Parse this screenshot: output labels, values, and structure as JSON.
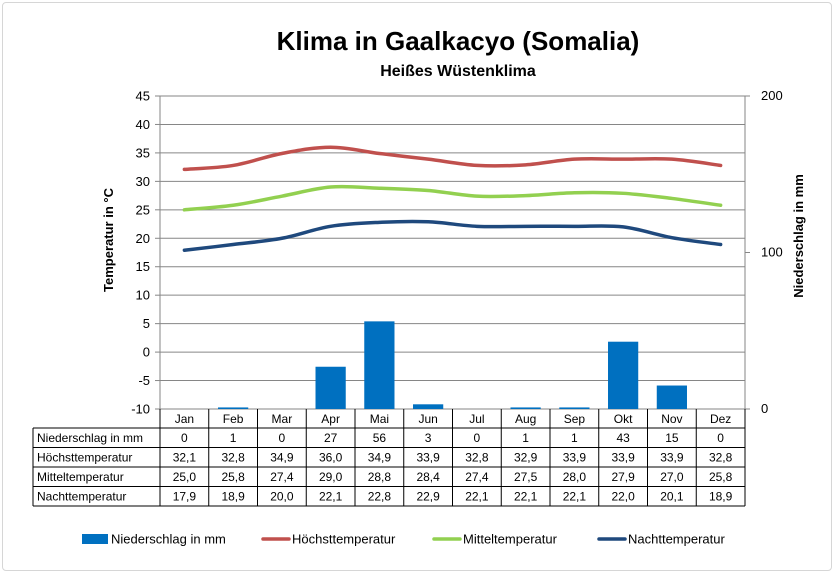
{
  "chart_data": {
    "type": "bar",
    "title": "Klima in Gaalkacyo (Somalia)",
    "subtitle": "Heißes Wüstenklima",
    "ylabel": "Temperatur in °C",
    "y2label": "Niederschlag in mm",
    "ylim": [
      -10,
      45
    ],
    "y2lim": [
      0,
      200
    ],
    "y_ticks": [
      "45",
      "40",
      "35",
      "30",
      "25",
      "20",
      "15",
      "10",
      "5",
      "0",
      "-5",
      "-10"
    ],
    "y2_ticks": [
      "200",
      "100",
      "0"
    ],
    "grid": true,
    "legend_position": "bottom",
    "categories": [
      "Jan",
      "Feb",
      "Mar",
      "Apr",
      "Mai",
      "Jun",
      "Jul",
      "Aug",
      "Sep",
      "Okt",
      "Nov",
      "Dez"
    ],
    "series": [
      {
        "name": "Niederschlag in mm",
        "type": "bar",
        "axis": "right",
        "color": "#0070c0",
        "values": [
          0,
          1,
          0,
          27,
          56,
          3,
          0,
          1,
          1,
          43,
          15,
          0
        ],
        "labels": [
          "0",
          "1",
          "0",
          "27",
          "56",
          "3",
          "0",
          "1",
          "1",
          "43",
          "15",
          "0"
        ]
      },
      {
        "name": "Höchsttemperatur",
        "type": "line",
        "axis": "left",
        "color": "#c0504d",
        "values": [
          32.1,
          32.8,
          34.9,
          36.0,
          34.9,
          33.9,
          32.8,
          32.9,
          33.9,
          33.9,
          33.9,
          32.8
        ],
        "labels": [
          "32,1",
          "32,8",
          "34,9",
          "36,0",
          "34,9",
          "33,9",
          "32,8",
          "32,9",
          "33,9",
          "33,9",
          "33,9",
          "32,8"
        ]
      },
      {
        "name": "Mitteltemperatur",
        "type": "line",
        "axis": "left",
        "color": "#92d050",
        "values": [
          25.0,
          25.8,
          27.4,
          29.0,
          28.8,
          28.4,
          27.4,
          27.5,
          28.0,
          27.9,
          27.0,
          25.8
        ],
        "labels": [
          "25,0",
          "25,8",
          "27,4",
          "29,0",
          "28,8",
          "28,4",
          "27,4",
          "27,5",
          "28,0",
          "27,9",
          "27,0",
          "25,8"
        ]
      },
      {
        "name": "Nachttemperatur",
        "type": "line",
        "axis": "left",
        "color": "#1f497d",
        "values": [
          17.9,
          18.9,
          20.0,
          22.1,
          22.8,
          22.9,
          22.1,
          22.1,
          22.1,
          22.0,
          20.1,
          18.9
        ],
        "labels": [
          "17,9",
          "18,9",
          "20,0",
          "22,1",
          "22,8",
          "22,9",
          "22,1",
          "22,1",
          "22,1",
          "22,0",
          "20,1",
          "18,9"
        ]
      }
    ]
  }
}
